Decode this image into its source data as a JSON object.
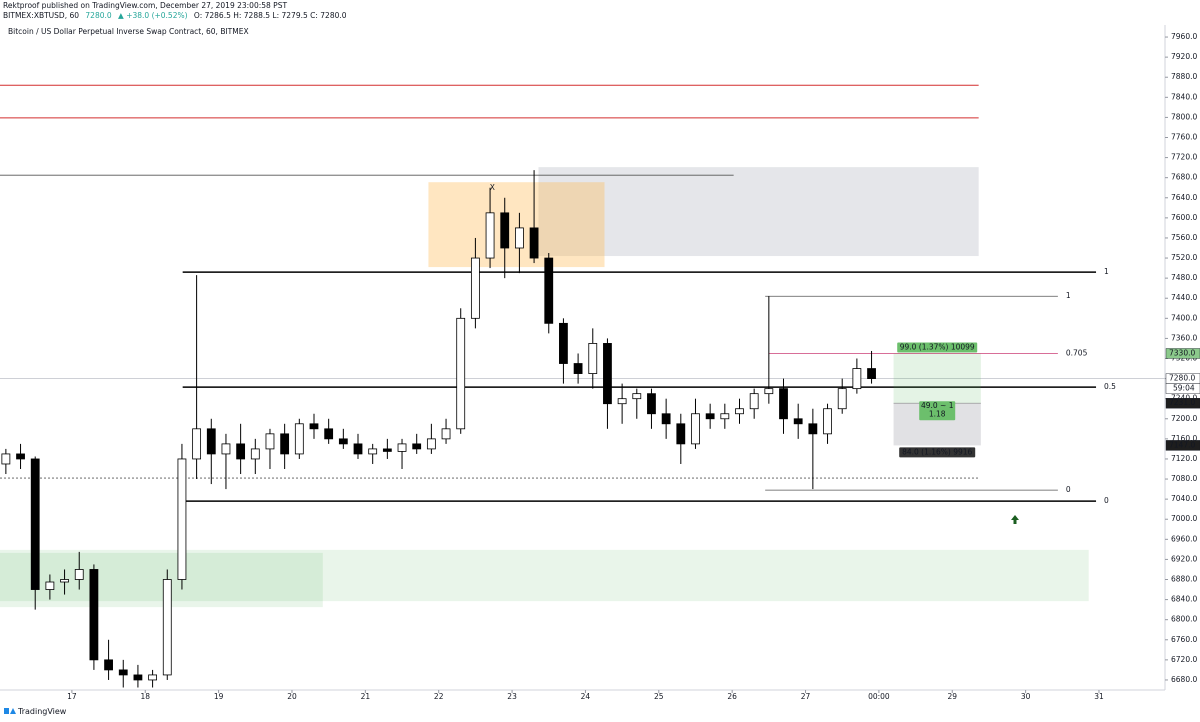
{
  "header": {
    "author_line": "Rektproof published on TradingView.com, December 27, 2019 23:00:58 PST",
    "symbol": "BITMEX:XBTUSD, 60",
    "last": "7280.0",
    "change": "▲ +38.0 (+0.52%)",
    "ohlc": "O: 7286.5 H: 7288.5 L: 7279.5 C: 7280.0"
  },
  "footer": {
    "brand": "TradingView"
  },
  "chart_data": {
    "type": "candlestick",
    "title": "Bitcoin / US Dollar Perpetual Inverse Swap Contract, 60, BITMEX",
    "x": [
      16.1,
      16.3,
      16.5,
      16.7,
      16.9,
      17.1,
      17.3,
      17.5,
      17.7,
      17.9,
      18.1,
      18.3,
      18.5,
      18.7,
      18.9,
      19.1,
      19.3,
      19.5,
      19.7,
      19.9,
      20.1,
      20.3,
      20.5,
      20.7,
      20.9,
      21.1,
      21.3,
      21.5,
      21.7,
      21.9,
      22.1,
      22.3,
      22.5,
      22.7,
      22.9,
      23.1,
      23.3,
      23.5,
      23.7,
      23.9,
      24.1,
      24.3,
      24.5,
      24.7,
      24.9,
      25.1,
      25.3,
      25.5,
      25.7,
      25.9,
      26.1,
      26.3,
      26.5,
      26.7,
      26.9,
      27.1,
      27.3,
      27.5,
      27.7,
      27.9
    ],
    "open": [
      7110,
      7130,
      7120,
      6860,
      6875,
      6880,
      6900,
      6720,
      6700,
      6690,
      6680,
      6690,
      6880,
      7120,
      7180,
      7130,
      7150,
      7120,
      7140,
      7170,
      7130,
      7190,
      7180,
      7160,
      7150,
      7130,
      7140,
      7135,
      7150,
      7140,
      7160,
      7180,
      7400,
      7520,
      7610,
      7540,
      7580,
      7520,
      7390,
      7310,
      7290,
      7350,
      7230,
      7240,
      7250,
      7210,
      7190,
      7150,
      7210,
      7200,
      7210,
      7220,
      7250,
      7260,
      7200,
      7190,
      7170,
      7220,
      7260,
      7300
    ],
    "high": [
      7140,
      7150,
      7125,
      6890,
      6900,
      6935,
      6910,
      6760,
      6720,
      6710,
      6700,
      6900,
      7150,
      7486,
      7200,
      7170,
      7190,
      7160,
      7180,
      7190,
      7200,
      7210,
      7200,
      7180,
      7170,
      7150,
      7160,
      7160,
      7170,
      7190,
      7200,
      7420,
      7560,
      7660,
      7640,
      7610,
      7695,
      7530,
      7400,
      7330,
      7380,
      7360,
      7270,
      7260,
      7260,
      7240,
      7210,
      7240,
      7230,
      7230,
      7240,
      7260,
      7444,
      7280,
      7230,
      7220,
      7230,
      7280,
      7320,
      7335
    ],
    "low": [
      7090,
      7100,
      6820,
      6840,
      6850,
      6860,
      6700,
      6680,
      6665,
      6665,
      6665,
      6680,
      6860,
      7080,
      7070,
      7060,
      7090,
      7090,
      7100,
      7100,
      7120,
      7160,
      7150,
      7140,
      7120,
      7110,
      7120,
      7100,
      7130,
      7130,
      7150,
      7170,
      7380,
      7500,
      7480,
      7490,
      7510,
      7370,
      7270,
      7270,
      7260,
      7180,
      7190,
      7200,
      7180,
      7160,
      7110,
      7140,
      7180,
      7180,
      7190,
      7200,
      7230,
      7170,
      7160,
      7060,
      7150,
      7210,
      7250,
      7270
    ],
    "close": [
      7130,
      7120,
      6860,
      6875,
      6880,
      6900,
      6720,
      6700,
      6690,
      6680,
      6690,
      6880,
      7120,
      7180,
      7130,
      7150,
      7120,
      7140,
      7170,
      7130,
      7190,
      7180,
      7160,
      7150,
      7130,
      7140,
      7135,
      7150,
      7140,
      7160,
      7180,
      7400,
      7520,
      7610,
      7540,
      7580,
      7520,
      7390,
      7310,
      7290,
      7350,
      7230,
      7240,
      7250,
      7210,
      7190,
      7150,
      7210,
      7200,
      7210,
      7220,
      7250,
      7260,
      7200,
      7190,
      7170,
      7220,
      7260,
      7300,
      7280
    ],
    "up_color": "#ffffff",
    "down_color": "#000000",
    "wick_color": "#000000",
    "xlim": [
      16.02,
      31.9
    ],
    "xticks": [
      17,
      18,
      19,
      20,
      21,
      22,
      23,
      24,
      25,
      26,
      27,
      {
        "value": 28,
        "label": "00:00"
      },
      29,
      30,
      31
    ],
    "ylim": [
      6660,
      7980
    ],
    "yticks": [
      {
        "value": 6680,
        "label": "6680.0"
      },
      {
        "value": 6720,
        "label": "6720.0"
      },
      {
        "value": 6760,
        "label": "6760.0"
      },
      {
        "value": 6800,
        "label": "6800.0"
      },
      {
        "value": 6840,
        "label": "6840.0"
      },
      {
        "value": 6880,
        "label": "6880.0"
      },
      {
        "value": 6920,
        "label": "6920.0"
      },
      {
        "value": 6960,
        "label": "6960.0"
      },
      {
        "value": 7000,
        "label": "7000.0"
      },
      {
        "value": 7040,
        "label": "7040.0"
      },
      {
        "value": 7080,
        "label": "7080.0"
      },
      {
        "value": 7120,
        "label": "7120.0"
      },
      {
        "value": 7160,
        "label": "7160.0"
      },
      {
        "value": 7200,
        "label": "7200.0"
      },
      {
        "value": 7240,
        "label": "7240.0"
      },
      {
        "value": 7280,
        "label": "7280.0"
      },
      {
        "value": 7320,
        "label": "7320.0"
      },
      {
        "value": 7360,
        "label": "7360.0"
      },
      {
        "value": 7400,
        "label": "7400.0"
      },
      {
        "value": 7440,
        "label": "7440.0"
      },
      {
        "value": 7480,
        "label": "7480.0"
      },
      {
        "value": 7520,
        "label": "7520.0"
      },
      {
        "value": 7560,
        "label": "7560.0"
      },
      {
        "value": 7600,
        "label": "7600.0"
      },
      {
        "value": 7640,
        "label": "7640.0"
      },
      {
        "value": 7680,
        "label": "7680.0"
      },
      {
        "value": 7720,
        "label": "7720.0"
      },
      {
        "value": 7760,
        "label": "7760.0"
      },
      {
        "value": 7800,
        "label": "7800.0"
      },
      {
        "value": 7840,
        "label": "7840.0"
      },
      {
        "value": 7880,
        "label": "7880.0"
      },
      {
        "value": 7920,
        "label": "7920.0"
      },
      {
        "value": 7960,
        "label": "7960.0"
      }
    ],
    "zones": [
      {
        "x": [
          16.02,
          30.86
        ],
        "y": [
          6837,
          6939
        ],
        "color": "rgba(76,175,80,0.12)"
      },
      {
        "x": [
          16.02,
          20.42
        ],
        "y": [
          6825,
          6933
        ],
        "color": "rgba(76,175,80,0.12)"
      },
      {
        "x": [
          23.36,
          29.36
        ],
        "y": [
          7524,
          7701
        ],
        "color": "rgba(180,182,195,0.35)"
      },
      {
        "x": [
          21.86,
          24.26
        ],
        "y": [
          7502,
          7671
        ],
        "color": "rgba(255,183,77,0.35)"
      }
    ],
    "lines": [
      {
        "price": 7864,
        "x": [
          16.02,
          29.36
        ],
        "color": "#d32f2f",
        "width": 1
      },
      {
        "price": 7799,
        "x": [
          16.02,
          29.36
        ],
        "color": "#d32f2f",
        "width": 1
      },
      {
        "price": 7685,
        "x": [
          16.02,
          26.02
        ],
        "color": "#555555",
        "width": 0.8
      },
      {
        "price": 7492,
        "x": [
          18.51,
          30.96
        ],
        "color": "#000000",
        "width": 1.5,
        "label": "1"
      },
      {
        "price": 7263,
        "x": [
          18.51,
          30.96
        ],
        "color": "#000000",
        "width": 1.5,
        "label": "0.5"
      },
      {
        "price": 7036,
        "x": [
          18.51,
          30.96
        ],
        "color": "#000000",
        "width": 1.5,
        "label": "0"
      },
      {
        "price": 7444,
        "x": [
          26.45,
          30.44
        ],
        "color": "#555555",
        "width": 0.8,
        "label": "1"
      },
      {
        "price": 7330,
        "x": [
          26.5,
          30.44
        ],
        "color": "#c2185b",
        "width": 0.6,
        "label": "0.705"
      },
      {
        "price": 7058,
        "x": [
          26.45,
          30.44
        ],
        "color": "#555555",
        "width": 0.8,
        "label": "0"
      },
      {
        "price": 7082,
        "x": [
          16.02,
          29.36
        ],
        "color": "#555555",
        "width": 0.8,
        "dash": true
      }
    ],
    "annotations": [
      {
        "text": "X",
        "x": 22.73,
        "y": 7659
      }
    ],
    "position": {
      "x": [
        28.2,
        29.39
      ],
      "entry": 7231,
      "target": 7330,
      "stop": 7147,
      "target_label": "99.0 (1.37%) 10099",
      "rr_label": [
        "49.0 ~ 1",
        "1.18"
      ],
      "stop_label": "84.0 (1.16%) 9916"
    },
    "price_labels": [
      {
        "value": 7330,
        "label": "7330.0",
        "bg": "#8bc98b",
        "fg": "#000000"
      },
      {
        "value": 7280,
        "label": "7280.0",
        "bg": "#ffffff",
        "fg": "#000000",
        "sub": "59:04",
        "line": true
      },
      {
        "value": 7231,
        "label": "7231.0",
        "bg": "#1e1e1e",
        "fg": "#ffffff"
      },
      {
        "value": 7147,
        "label": "7147.0",
        "bg": "#1e1e1e",
        "fg": "#ffffff"
      }
    ]
  }
}
